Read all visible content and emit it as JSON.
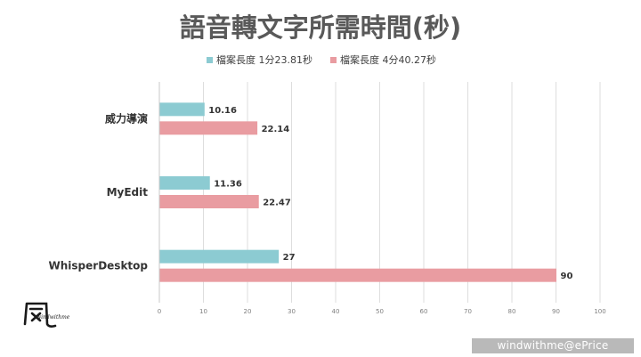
{
  "chart_data": {
    "type": "bar",
    "orientation": "horizontal",
    "title": "語音轉文字所需時間(秒)",
    "categories": [
      "威力導演",
      "MyEdit",
      "WhisperDesktop"
    ],
    "series": [
      {
        "name": "檔案長度 1分23.81秒",
        "color": "#8ccbd2",
        "values": [
          10.16,
          11.36,
          27
        ],
        "labels": [
          "10.16",
          "11.36",
          "27"
        ]
      },
      {
        "name": "檔案長度 4分40.27秒",
        "color": "#e99ca1",
        "values": [
          22.14,
          22.47,
          90
        ],
        "labels": [
          "22.14",
          "22.47",
          "90"
        ]
      }
    ],
    "xlim": [
      0,
      100
    ],
    "xticks": [
      0,
      10,
      20,
      30,
      40,
      50,
      60,
      70,
      80,
      90,
      100
    ],
    "legend_position": "top",
    "grid": true
  },
  "logo": {
    "text": "windwithme"
  },
  "watermark": {
    "text": "windwithme@ePrice"
  }
}
